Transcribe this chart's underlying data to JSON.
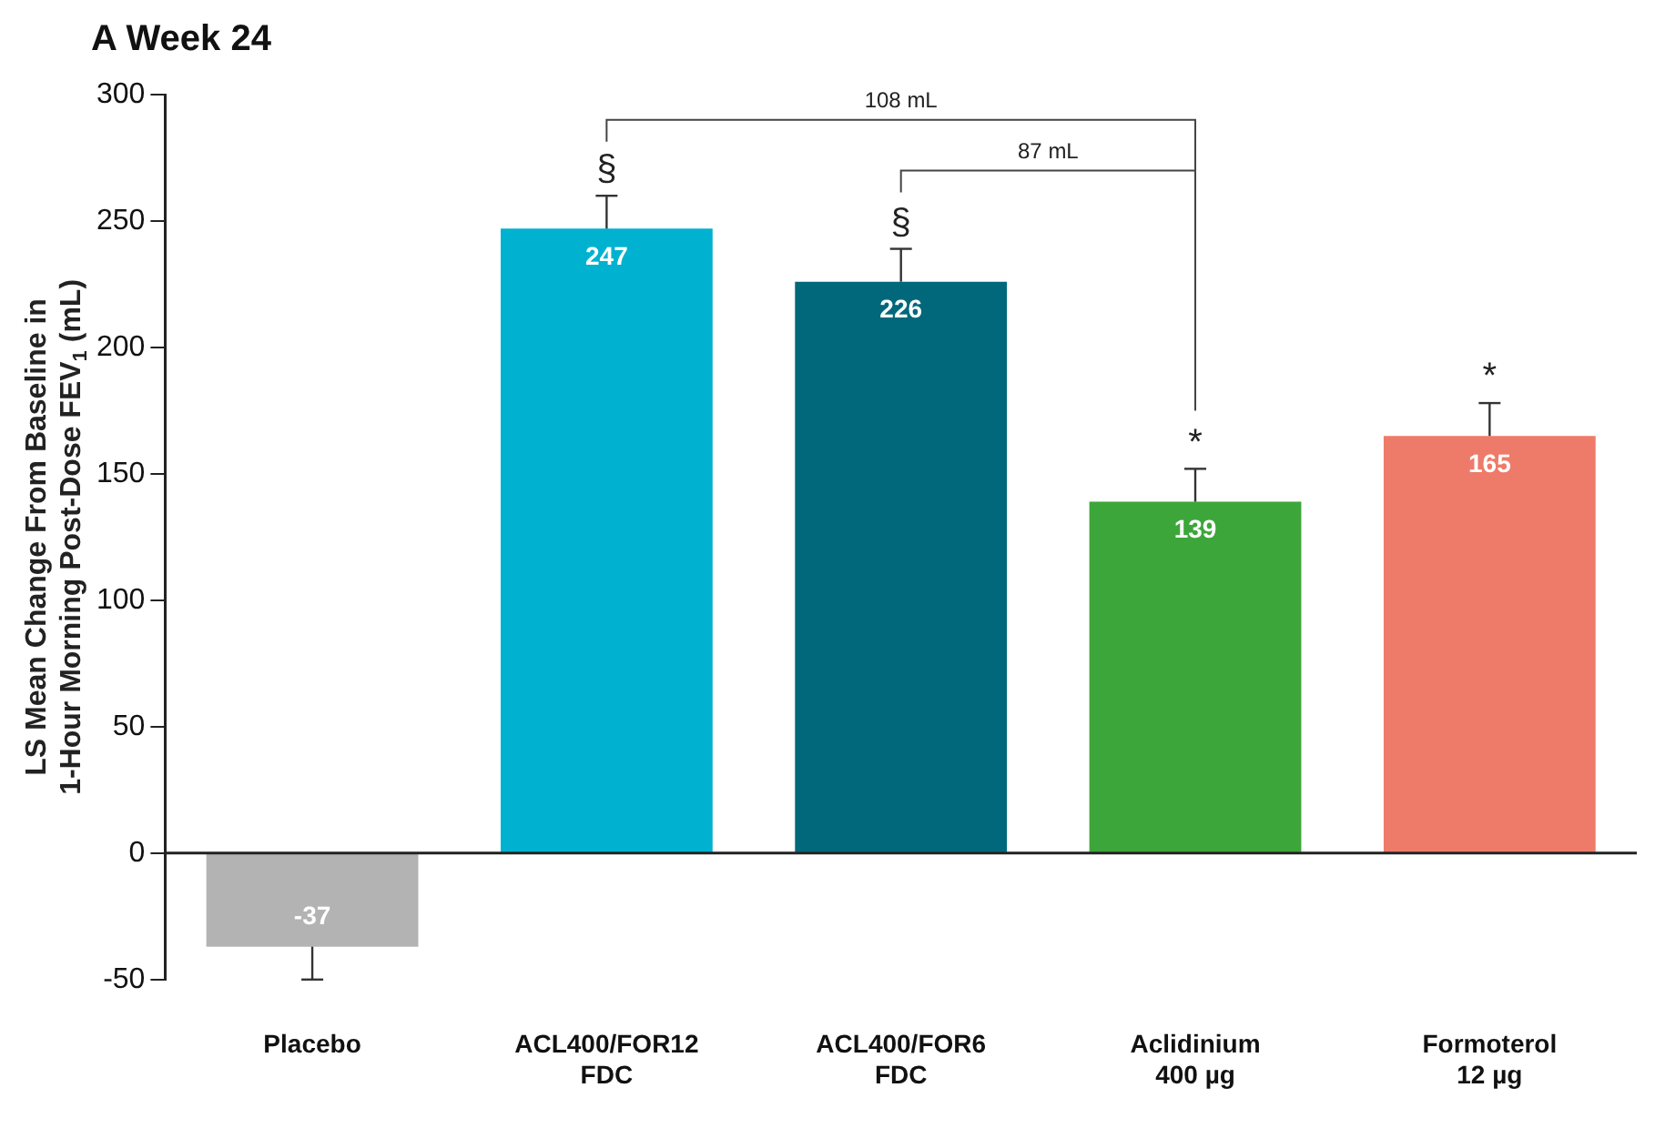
{
  "chart_data": {
    "type": "bar",
    "title": "A Week 24",
    "ylabel": "LS Mean Change From Baseline in\n1-Hour Morning Post-Dose FEV$_{1}$ (mL)",
    "categories": [
      "Placebo",
      "ACL400/FOR12\nFDC",
      "ACL400/FOR6\nFDC",
      "Aclidinium\n400 µg",
      "Formoterol\n12 µg"
    ],
    "values": [
      -37,
      247,
      226,
      139,
      165
    ],
    "colors": [
      "#b3b3b3",
      "#00b2d0",
      "#00687a",
      "#3da63a",
      "#ee7b6a"
    ],
    "errors": [
      [
        -50,
        -37
      ],
      [
        247,
        260
      ],
      [
        226,
        239
      ],
      [
        139,
        152
      ],
      [
        165,
        178
      ]
    ],
    "ylim": [
      -50,
      300
    ],
    "yticks": [
      -50,
      0,
      50,
      100,
      150,
      200,
      250,
      300
    ],
    "data_labels": true,
    "annotations": [
      "§",
      "§",
      "*",
      "*",
      "108 mL",
      "87 mL"
    ]
  }
}
